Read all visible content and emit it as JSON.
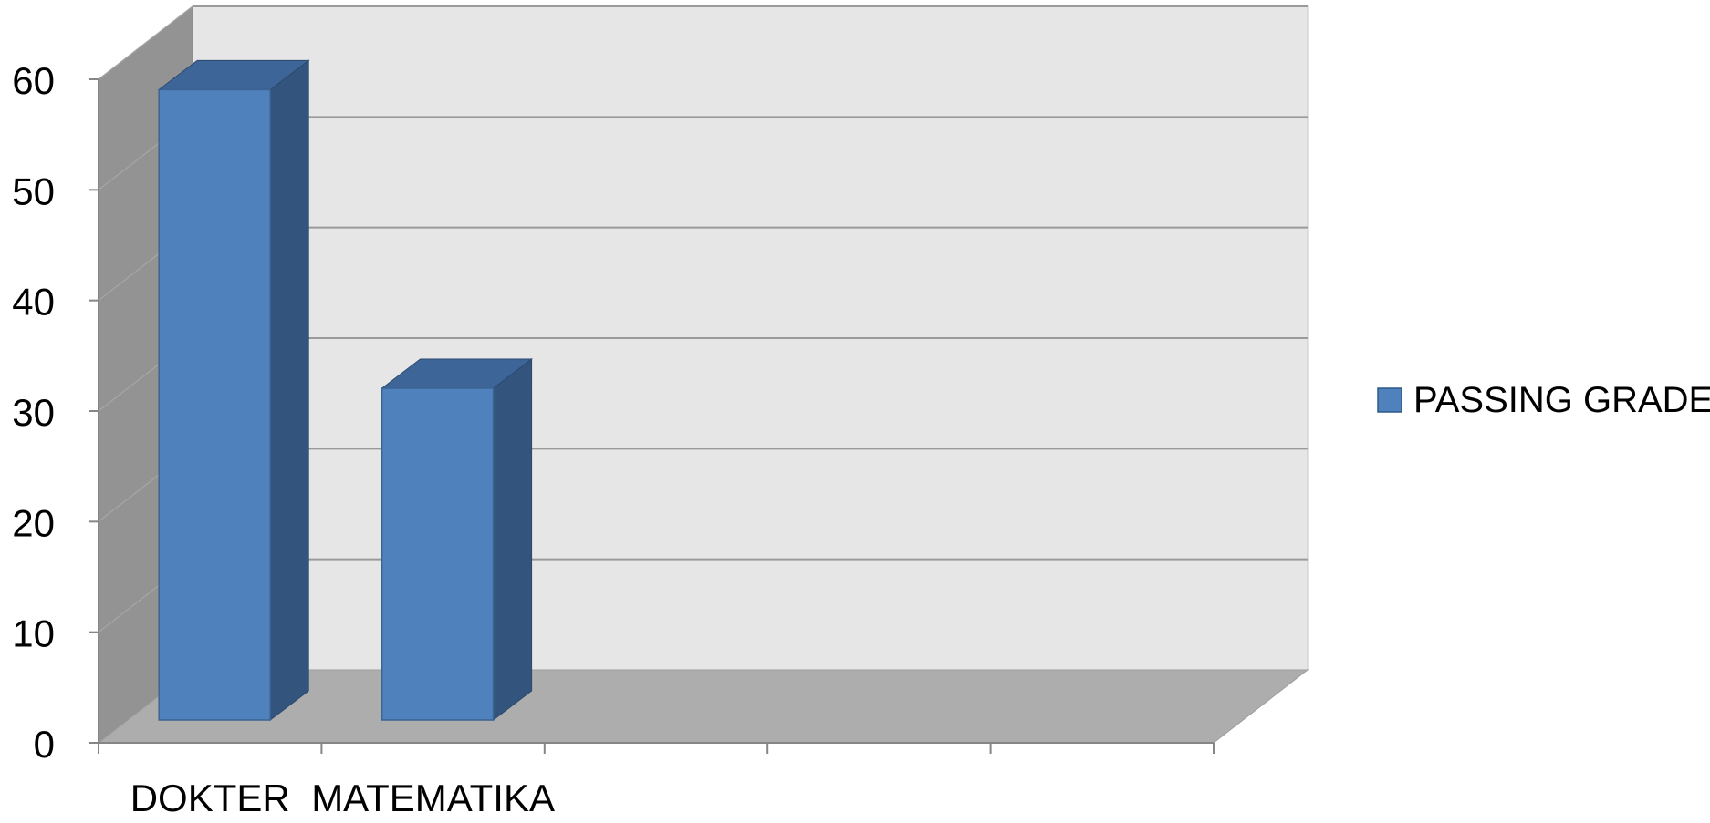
{
  "chart_data": {
    "type": "bar",
    "style": "3d-clustered-column",
    "categories": [
      "DOKTER",
      "MATEMATIKA",
      "",
      "",
      ""
    ],
    "series": [
      {
        "name": "PASSING GRADE",
        "values": [
          57,
          30,
          null,
          null,
          null
        ],
        "color": "#4F81BD"
      }
    ],
    "ylim": [
      0,
      60
    ],
    "yticks": [
      0,
      10,
      20,
      30,
      40,
      50,
      60
    ],
    "ytick_labels": [
      "0",
      "10",
      "20",
      "30",
      "40",
      "50",
      "60"
    ],
    "grid": true,
    "legend": "right",
    "title": "",
    "xlabel": "",
    "ylabel": ""
  },
  "colors": {
    "bar_front": "#4F81BD",
    "bar_side": "#32547D",
    "bar_top": "#3E6598",
    "back_wall": "#E6E6E6",
    "side_wall": "#939393",
    "floor": "#ADADAD",
    "gridline": "#9A9A9A"
  }
}
